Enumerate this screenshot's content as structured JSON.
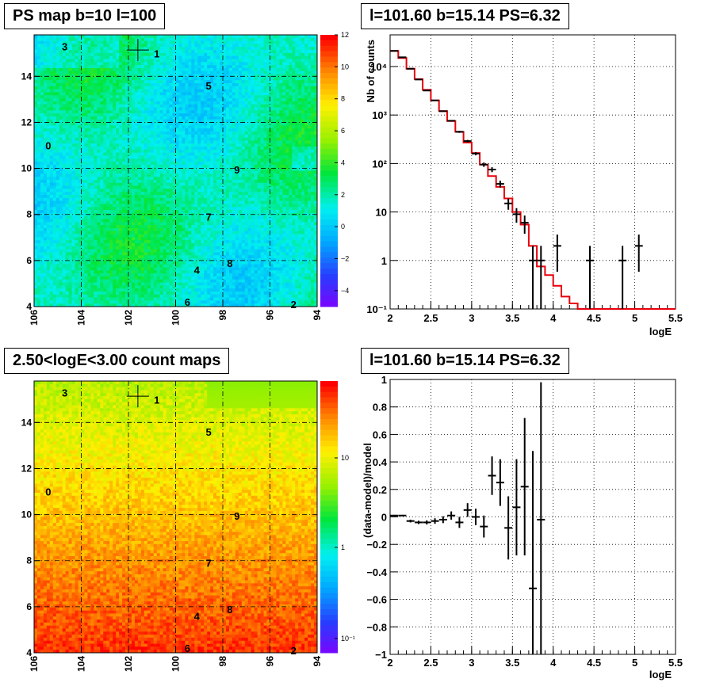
{
  "chart_data": [
    {
      "id": "ps_map",
      "type": "heatmap",
      "title": "PS map b=10 l=100",
      "x_ticks": [
        "106",
        "104",
        "102",
        "100",
        "98",
        "96",
        "94"
      ],
      "x_range": [
        106,
        94
      ],
      "y_ticks": [
        "4",
        "6",
        "8",
        "10",
        "12",
        "14"
      ],
      "y_range": [
        4,
        15.8
      ],
      "colorbar_ticks": [
        "12",
        "10",
        "8",
        "6",
        "4",
        "2",
        "0",
        "−2",
        "−4"
      ],
      "z_range": [
        -5,
        12
      ],
      "grid": true,
      "crosshair": {
        "l": 101.6,
        "b": 15.14
      },
      "regions": [
        {
          "label": "0",
          "l": 105.4,
          "b": 11.0
        },
        {
          "label": "1",
          "l": 100.8,
          "b": 15.0
        },
        {
          "label": "2",
          "l": 95.0,
          "b": 4.1
        },
        {
          "label": "3",
          "l": 104.7,
          "b": 15.3
        },
        {
          "label": "4",
          "l": 99.1,
          "b": 5.6
        },
        {
          "label": "5",
          "l": 98.6,
          "b": 13.6
        },
        {
          "label": "6",
          "l": 99.5,
          "b": 4.2
        },
        {
          "label": "7",
          "l": 98.6,
          "b": 7.9
        },
        {
          "label": "8",
          "l": 97.7,
          "b": 5.9
        },
        {
          "label": "9",
          "l": 97.4,
          "b": 9.95
        }
      ]
    },
    {
      "id": "spectrum",
      "type": "line",
      "title": "l=101.60 b=15.14 PS=6.32",
      "xlabel": "logE",
      "ylabel": "Nb of counts",
      "x_ticks": [
        "2",
        "2.5",
        "3",
        "3.5",
        "4",
        "4.5",
        "5",
        "5.5"
      ],
      "xlim": [
        2,
        5.5
      ],
      "y_ticks": [
        "10⁻¹",
        "1",
        "10",
        "10²",
        "10³",
        "10⁴"
      ],
      "ylim": [
        0.1,
        45000
      ],
      "log_y": true,
      "grid": true,
      "series": [
        {
          "color": "#e8000b",
          "kind": "step",
          "edges": [
            2.0,
            2.1,
            2.2,
            2.3,
            2.4,
            2.5,
            2.6,
            2.7,
            2.8,
            2.9,
            3.0,
            3.1,
            3.2,
            3.3,
            3.4,
            3.5,
            3.6,
            3.7,
            3.8,
            3.9,
            4.0,
            4.1,
            4.2,
            4.3,
            4.4,
            5.5
          ],
          "values": [
            21000,
            15000,
            9000,
            5500,
            3300,
            2000,
            1200,
            750,
            450,
            270,
            165,
            95,
            55,
            33,
            19,
            10,
            5.5,
            2.0,
            0.75,
            0.5,
            0.3,
            0.18,
            0.13,
            0.1,
            0.1
          ]
        },
        {
          "color": "#000000",
          "kind": "points",
          "x": [
            2.05,
            2.15,
            2.25,
            2.35,
            2.45,
            2.55,
            2.65,
            2.75,
            2.85,
            2.95,
            3.05,
            3.15,
            3.25,
            3.35,
            3.45,
            3.55,
            3.65,
            3.75,
            3.85,
            4.05,
            4.45,
            4.85,
            5.05
          ],
          "y": [
            21000,
            15500,
            9000,
            5400,
            3200,
            2000,
            1200,
            760,
            450,
            290,
            160,
            95,
            75,
            38,
            15,
            9,
            6,
            1,
            1,
            2,
            1,
            1,
            2
          ]
        }
      ]
    },
    {
      "id": "count_map",
      "type": "heatmap",
      "title": "2.50<logE<3.00 count maps",
      "x_ticks": [
        "106",
        "104",
        "102",
        "100",
        "98",
        "96",
        "94"
      ],
      "x_range": [
        106,
        94
      ],
      "y_ticks": [
        "4",
        "6",
        "8",
        "10",
        "12",
        "14"
      ],
      "y_range": [
        4,
        15.8
      ],
      "colorbar_ticks": [
        "10",
        "1",
        "10⁻¹"
      ],
      "z_log": true,
      "grid": true,
      "crosshair": {
        "l": 101.6,
        "b": 15.14
      },
      "regions": [
        {
          "label": "0",
          "l": 105.4,
          "b": 11.0
        },
        {
          "label": "1",
          "l": 100.8,
          "b": 15.0
        },
        {
          "label": "2",
          "l": 95.0,
          "b": 4.1
        },
        {
          "label": "3",
          "l": 104.7,
          "b": 15.3
        },
        {
          "label": "4",
          "l": 99.1,
          "b": 5.6
        },
        {
          "label": "5",
          "l": 98.6,
          "b": 13.6
        },
        {
          "label": "6",
          "l": 99.5,
          "b": 4.2
        },
        {
          "label": "7",
          "l": 98.6,
          "b": 7.9
        },
        {
          "label": "8",
          "l": 97.7,
          "b": 5.9
        },
        {
          "label": "9",
          "l": 97.4,
          "b": 9.95
        }
      ]
    },
    {
      "id": "residuals",
      "type": "scatter",
      "title": "l=101.60 b=15.14 PS=6.32",
      "xlabel": "logE",
      "ylabel": "(data-model)/model",
      "x_ticks": [
        "2",
        "2.5",
        "3",
        "3.5",
        "4",
        "4.5",
        "5",
        "5.5"
      ],
      "xlim": [
        2,
        5.5
      ],
      "y_ticks": [
        "−1",
        "−0.8",
        "−0.6",
        "−0.4",
        "−0.2",
        "0",
        "0.2",
        "0.4",
        "0.6",
        "0.8",
        "1"
      ],
      "ylim": [
        -1,
        1
      ],
      "grid": true,
      "x": [
        2.05,
        2.15,
        2.25,
        2.35,
        2.45,
        2.55,
        2.65,
        2.75,
        2.85,
        2.95,
        3.05,
        3.15,
        3.25,
        3.35,
        3.45,
        3.55,
        3.65,
        3.75,
        3.85
      ],
      "y": [
        0.01,
        0.01,
        -0.03,
        -0.04,
        -0.04,
        -0.03,
        -0.02,
        0.01,
        -0.04,
        0.05,
        0.0,
        -0.07,
        0.3,
        0.25,
        -0.08,
        0.07,
        0.22,
        -0.52,
        -0.02
      ],
      "yerr": [
        0.005,
        0.005,
        0.01,
        0.012,
        0.015,
        0.02,
        0.025,
        0.03,
        0.04,
        0.05,
        0.06,
        0.08,
        0.14,
        0.17,
        0.23,
        0.35,
        0.5,
        1.0,
        1.0
      ]
    }
  ]
}
